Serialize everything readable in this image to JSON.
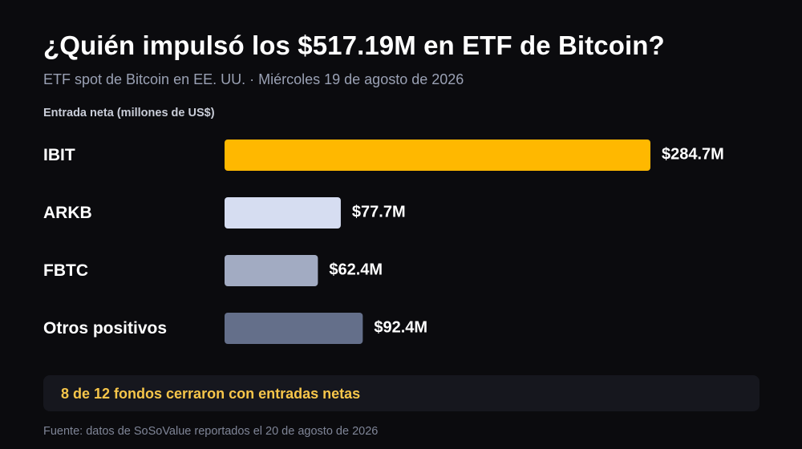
{
  "chart_data": {
    "type": "bar",
    "orientation": "horizontal",
    "title": "¿Quién impulsó los $517.19M en ETF de Bitcoin?",
    "subtitle": "ETF spot de Bitcoin en EE. UU. · Miércoles 19 de agosto de 2026",
    "xlabel": "Entrada neta (millones de US$)",
    "categories": [
      "IBIT",
      "ARKB",
      "FBTC",
      "Otros positivos"
    ],
    "values": [
      284.7,
      77.7,
      62.4,
      92.4
    ],
    "value_labels": [
      "$284.7M",
      "$77.7M",
      "$62.4M",
      "$92.4M"
    ],
    "colors": [
      "#ffb800",
      "#d6ddf1",
      "#a2abc2",
      "#646f8a"
    ],
    "xlim": [
      0,
      284.7
    ],
    "grid": false,
    "legend": "none"
  },
  "callout": {
    "text": "8 de 12 fondos cerraron con entradas netas",
    "color": "#f7c64a"
  },
  "source": "Fuente: datos de SoSoValue reportados el 20 de agosto de 2026"
}
